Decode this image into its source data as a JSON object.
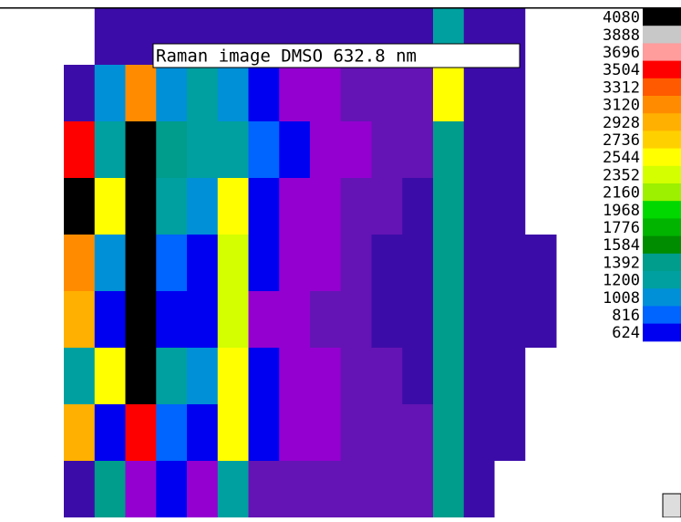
{
  "chart_data": {
    "type": "heatmap",
    "title": "Raman image DMSO 632.8 nm",
    "scale": [
      {
        "value": 4080,
        "color": "#000000",
        "label": "4080"
      },
      {
        "value": 3888,
        "color": "#c8c8c8",
        "label": "3888"
      },
      {
        "value": 3696,
        "color": "#ff9c9c",
        "label": "3696"
      },
      {
        "value": 3504,
        "color": "#ff0000",
        "label": "3504"
      },
      {
        "value": 3312,
        "color": "#ff5a00",
        "label": "3312"
      },
      {
        "value": 3120,
        "color": "#ff8c00",
        "label": "3120"
      },
      {
        "value": 2928,
        "color": "#ffb000",
        "label": "2928"
      },
      {
        "value": 2736,
        "color": "#ffd000",
        "label": "2736"
      },
      {
        "value": 2544,
        "color": "#ffff00",
        "label": "2544"
      },
      {
        "value": 2352,
        "color": "#d4ff00",
        "label": "2352"
      },
      {
        "value": 2160,
        "color": "#9cf000",
        "label": "2160"
      },
      {
        "value": 1968,
        "color": "#00d800",
        "label": "1968"
      },
      {
        "value": 1776,
        "color": "#00b400",
        "label": "1776"
      },
      {
        "value": 1584,
        "color": "#008c00",
        "label": "1584"
      },
      {
        "value": 1392,
        "color": "#009c8c",
        "label": "1392"
      },
      {
        "value": 1200,
        "color": "#00a0a0",
        "label": "1200"
      },
      {
        "value": 1008,
        "color": "#0090d8",
        "label": "1008"
      },
      {
        "value": 816,
        "color": "#0064ff",
        "label": "816"
      },
      {
        "value": 624,
        "color": "#0000f0",
        "label": "624"
      },
      {
        "value": 432,
        "color": "#9400d0",
        "label": null
      },
      {
        "value": 240,
        "color": "#6414b4",
        "label": null
      },
      {
        "value": 48,
        "color": "#3c0ca8",
        "label": null
      },
      {
        "value": 0,
        "color": "#ffffff",
        "label": null
      }
    ],
    "z": [
      [
        0,
        48,
        48,
        48,
        48,
        48,
        48,
        48,
        48,
        48,
        48,
        48,
        1200,
        48,
        48,
        0
      ],
      [
        48,
        1008,
        3120,
        1008,
        1200,
        1008,
        624,
        432,
        432,
        240,
        240,
        240,
        2544,
        48,
        48,
        0
      ],
      [
        3504,
        1200,
        4080,
        1392,
        1200,
        1200,
        816,
        624,
        432,
        432,
        240,
        240,
        1392,
        48,
        48,
        0
      ],
      [
        4080,
        2544,
        4080,
        1200,
        1008,
        2544,
        624,
        432,
        432,
        240,
        240,
        48,
        1392,
        48,
        48,
        0
      ],
      [
        3120,
        1008,
        4080,
        816,
        624,
        2352,
        624,
        432,
        432,
        240,
        48,
        48,
        1392,
        48,
        48,
        48
      ],
      [
        2928,
        624,
        4080,
        624,
        624,
        2352,
        432,
        432,
        240,
        240,
        48,
        48,
        1392,
        48,
        48,
        48
      ],
      [
        1200,
        2544,
        4080,
        1200,
        1008,
        2544,
        624,
        432,
        432,
        240,
        240,
        48,
        1392,
        48,
        48,
        0
      ],
      [
        2928,
        624,
        3504,
        816,
        624,
        2544,
        624,
        432,
        432,
        240,
        240,
        240,
        1392,
        48,
        48,
        0
      ],
      [
        48,
        1392,
        432,
        624,
        432,
        1200,
        240,
        240,
        240,
        240,
        240,
        240,
        1392,
        48,
        0,
        0
      ]
    ]
  }
}
